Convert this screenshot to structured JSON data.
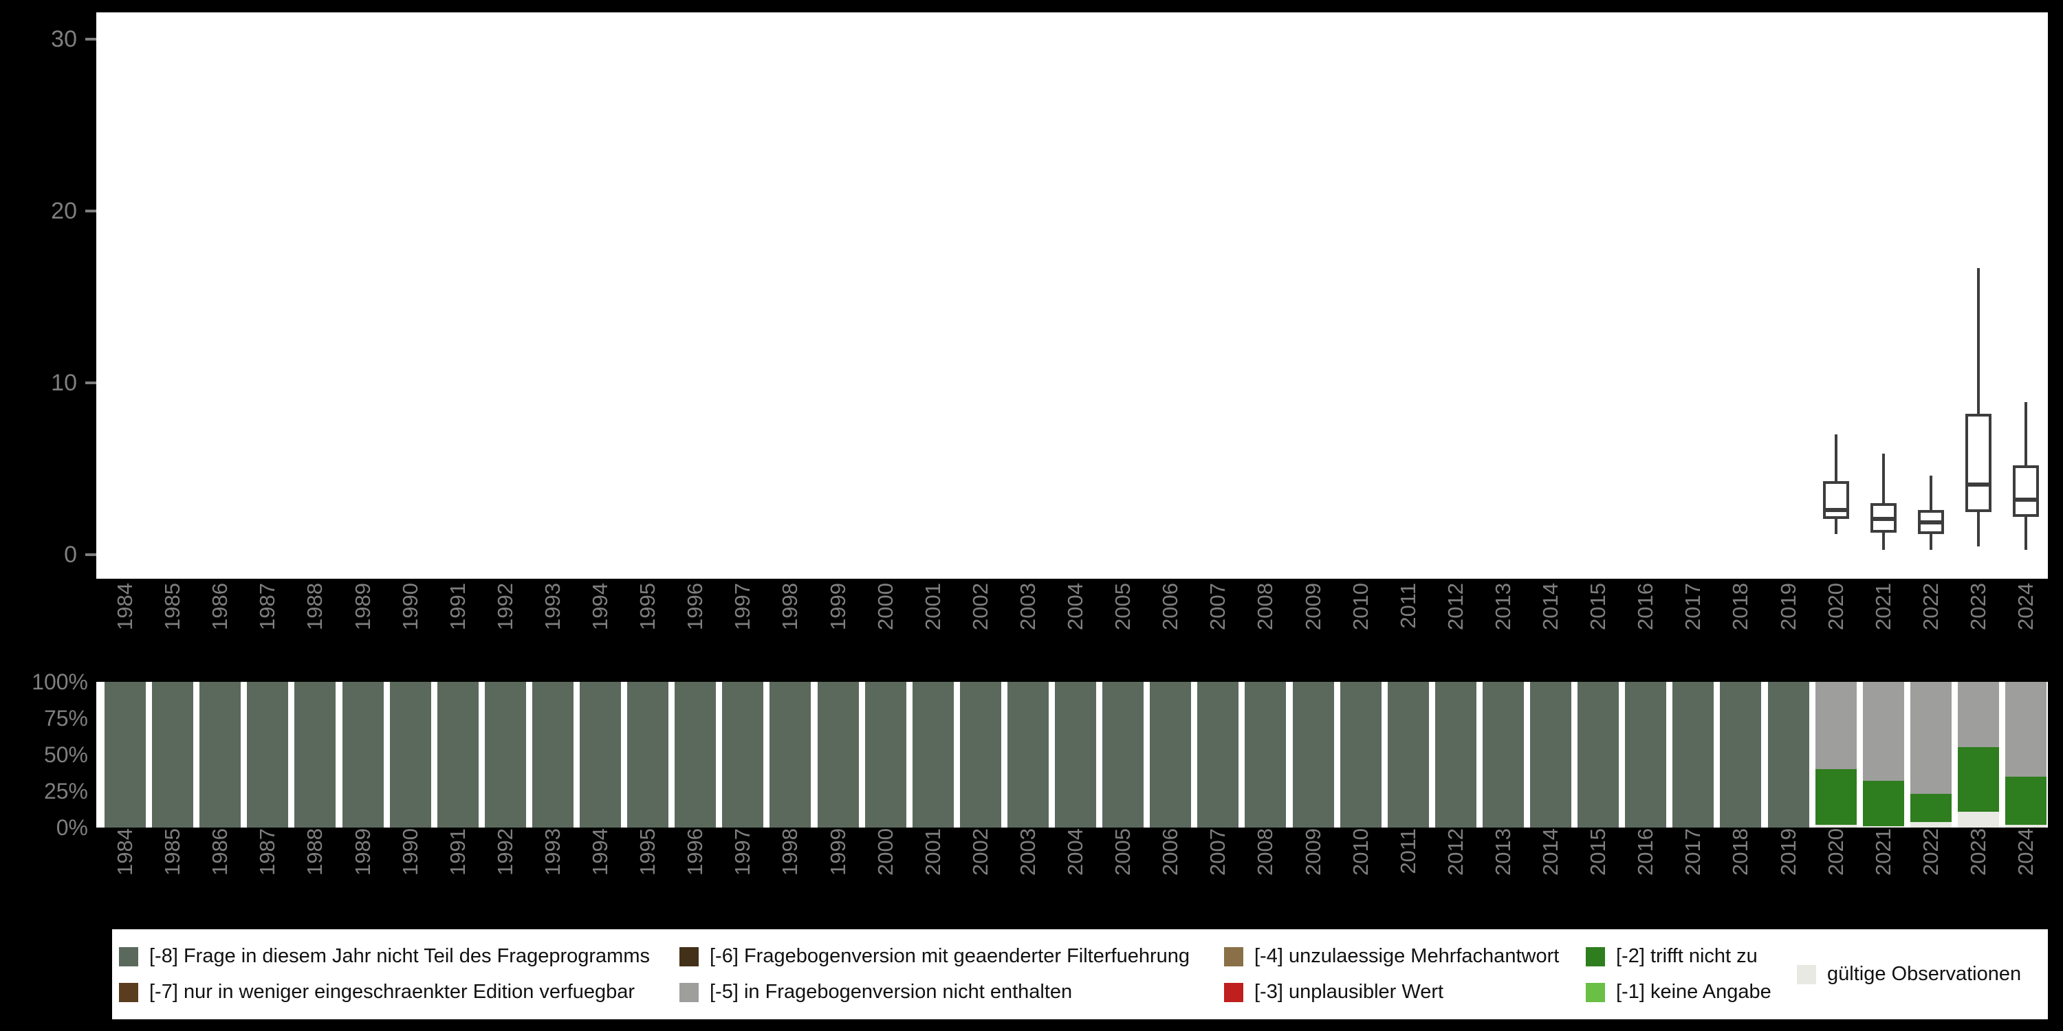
{
  "page": {
    "background": "#000000",
    "panel_background": "#ffffff",
    "tick_color": "#7f7f7f",
    "box_stroke": "#3d3d3d"
  },
  "colors": {
    "m8": "#5a695c",
    "m7": "#5a3d1e",
    "m6": "#433019",
    "m5": "#9e9e9c",
    "m4": "#8a7048",
    "m3": "#bf1f1f",
    "m2": "#2e7d1e",
    "m1": "#6abf45",
    "valid": "#e9e9e4"
  },
  "legend": {
    "items": [
      {
        "id": "m8",
        "label": "[-8] Frage in diesem Jahr nicht Teil des Frageprogramms",
        "col": 0
      },
      {
        "id": "m7",
        "label": "[-7] nur in weniger eingeschraenkter Edition verfuegbar",
        "col": 0
      },
      {
        "id": "m6",
        "label": "[-6] Fragebogenversion mit geaenderter Filterfuehrung",
        "col": 1
      },
      {
        "id": "m5",
        "label": "[-5] in Fragebogenversion nicht enthalten",
        "col": 1
      },
      {
        "id": "m4",
        "label": "[-4] unzulaessige Mehrfachantwort",
        "col": 2
      },
      {
        "id": "m3",
        "label": "[-3] unplausibler Wert",
        "col": 2
      },
      {
        "id": "m2",
        "label": "[-2] trifft nicht zu",
        "col": 3
      },
      {
        "id": "m1",
        "label": "[-1] keine Angabe",
        "col": 3
      },
      {
        "id": "valid",
        "label": "gültige Observationen",
        "col": 4
      }
    ]
  },
  "chart_data": [
    {
      "type": "boxplot",
      "title": "",
      "xlabel": "",
      "ylabel": "",
      "ylim": [
        0,
        30
      ],
      "yticks": [
        0,
        10,
        20,
        30
      ],
      "grid": false,
      "categories": [
        1984,
        1985,
        1986,
        1987,
        1988,
        1989,
        1990,
        1991,
        1992,
        1993,
        1994,
        1995,
        1996,
        1997,
        1998,
        1999,
        2000,
        2001,
        2002,
        2003,
        2004,
        2005,
        2006,
        2007,
        2008,
        2009,
        2010,
        2011,
        2012,
        2013,
        2014,
        2015,
        2016,
        2017,
        2018,
        2019,
        2020,
        2021,
        2022,
        2023,
        2024
      ],
      "boxes": [
        {
          "year": 2020,
          "low": 1.2,
          "q1": 2.1,
          "median": 2.6,
          "q3": 4.3,
          "high": 7.0
        },
        {
          "year": 2021,
          "low": 0.3,
          "q1": 1.3,
          "median": 2.1,
          "q3": 3.0,
          "high": 5.9
        },
        {
          "year": 2022,
          "low": 0.3,
          "q1": 1.2,
          "median": 1.9,
          "q3": 2.6,
          "high": 4.6
        },
        {
          "year": 2023,
          "low": 0.5,
          "q1": 2.5,
          "median": 4.1,
          "q3": 8.2,
          "high": 16.7
        },
        {
          "year": 2024,
          "low": 0.3,
          "q1": 2.2,
          "median": 3.2,
          "q3": 5.2,
          "high": 8.9
        }
      ]
    },
    {
      "type": "bar",
      "subtype": "stacked-percent",
      "title": "",
      "xlabel": "",
      "ylabel": "",
      "grid": false,
      "categories": [
        1984,
        1985,
        1986,
        1987,
        1988,
        1989,
        1990,
        1991,
        1992,
        1993,
        1994,
        1995,
        1996,
        1997,
        1998,
        1999,
        2000,
        2001,
        2002,
        2003,
        2004,
        2005,
        2006,
        2007,
        2008,
        2009,
        2010,
        2011,
        2012,
        2013,
        2014,
        2015,
        2016,
        2017,
        2018,
        2019,
        2020,
        2021,
        2022,
        2023,
        2024
      ],
      "yticks": [
        {
          "label": "100%",
          "pct": 100
        },
        {
          "label": "75%",
          "pct": 75
        },
        {
          "label": "50%",
          "pct": 50
        },
        {
          "label": "25%",
          "pct": 25
        },
        {
          "label": "0%",
          "pct": 0
        }
      ],
      "stack_order": [
        "valid",
        "m2",
        "m5",
        "m8"
      ],
      "series": [
        {
          "id": "m8",
          "name": "[-8] Frage in diesem Jahr nicht Teil des Frageprogramms",
          "values": [
            100,
            100,
            100,
            100,
            100,
            100,
            100,
            100,
            100,
            100,
            100,
            100,
            100,
            100,
            100,
            100,
            100,
            100,
            100,
            100,
            100,
            100,
            100,
            100,
            100,
            100,
            100,
            100,
            100,
            100,
            100,
            100,
            100,
            100,
            100,
            100,
            0,
            0,
            0,
            0,
            0
          ]
        },
        {
          "id": "m5",
          "name": "[-5] in Fragebogenversion nicht enthalten",
          "values": [
            0,
            0,
            0,
            0,
            0,
            0,
            0,
            0,
            0,
            0,
            0,
            0,
            0,
            0,
            0,
            0,
            0,
            0,
            0,
            0,
            0,
            0,
            0,
            0,
            0,
            0,
            0,
            0,
            0,
            0,
            0,
            0,
            0,
            0,
            0,
            0,
            60,
            68,
            77,
            45,
            65
          ]
        },
        {
          "id": "m2",
          "name": "[-2] trifft nicht zu",
          "values": [
            0,
            0,
            0,
            0,
            0,
            0,
            0,
            0,
            0,
            0,
            0,
            0,
            0,
            0,
            0,
            0,
            0,
            0,
            0,
            0,
            0,
            0,
            0,
            0,
            0,
            0,
            0,
            0,
            0,
            0,
            0,
            0,
            0,
            0,
            0,
            0,
            38,
            31,
            19,
            44,
            33
          ]
        },
        {
          "id": "valid",
          "name": "gültige Observationen",
          "values": [
            0,
            0,
            0,
            0,
            0,
            0,
            0,
            0,
            0,
            0,
            0,
            0,
            0,
            0,
            0,
            0,
            0,
            0,
            0,
            0,
            0,
            0,
            0,
            0,
            0,
            0,
            0,
            0,
            0,
            0,
            0,
            0,
            0,
            0,
            0,
            0,
            2,
            1,
            4,
            11,
            2
          ]
        }
      ]
    }
  ]
}
